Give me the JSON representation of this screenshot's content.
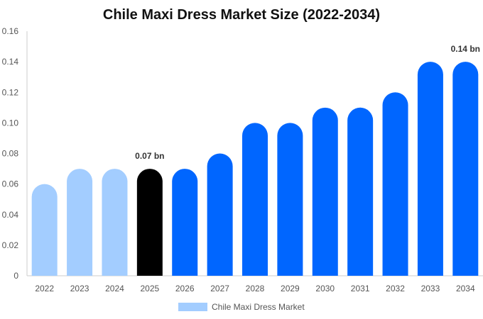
{
  "chart_data": {
    "type": "bar",
    "title": "Chile Maxi Dress Market Size (2022-2034)",
    "categories": [
      "2022",
      "2023",
      "2024",
      "2025",
      "2026",
      "2027",
      "2028",
      "2029",
      "2030",
      "2031",
      "2032",
      "2033",
      "2034"
    ],
    "series": [
      {
        "name": "Chile Maxi Dress Market",
        "values": [
          0.06,
          0.07,
          0.07,
          0.07,
          0.07,
          0.08,
          0.1,
          0.1,
          0.11,
          0.11,
          0.12,
          0.14,
          0.14
        ]
      }
    ],
    "ylim": [
      0,
      0.16
    ],
    "yticks": [
      "0",
      "0.02",
      "0.04",
      "0.06",
      "0.08",
      "0.10",
      "0.12",
      "0.14",
      "0.16"
    ],
    "xlabel": "",
    "ylabel": "",
    "grid": false,
    "legend_position": "bottom",
    "bar_colors": [
      "#a3cdff",
      "#a3cdff",
      "#a3cdff",
      "#000000",
      "#0066ff",
      "#0066ff",
      "#0066ff",
      "#0066ff",
      "#0066ff",
      "#0066ff",
      "#0066ff",
      "#0066ff",
      "#0066ff"
    ],
    "legend_color": "#a3cdff",
    "annotations": [
      {
        "category": "2025",
        "text": "0.07 bn"
      },
      {
        "category": "2034",
        "text": "0.14 bn"
      }
    ]
  }
}
